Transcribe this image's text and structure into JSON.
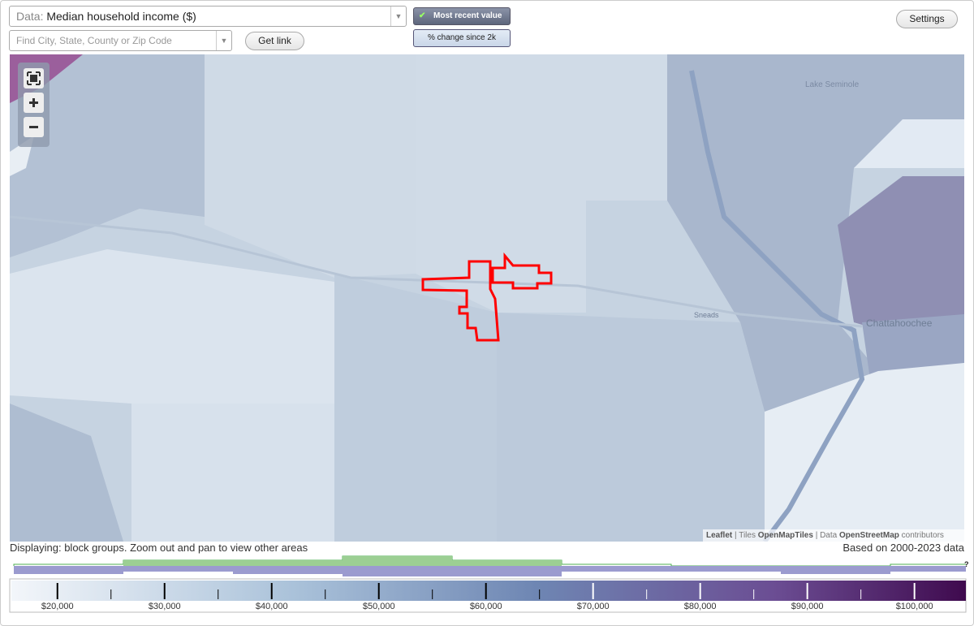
{
  "controls": {
    "data_prefix": "Data:",
    "data_value": "Median household income ($)",
    "search_placeholder": "Find City, State, County or Zip Code",
    "get_link": "Get link",
    "most_recent": "Most recent value",
    "pct_change": "% change since 2k",
    "settings": "Settings"
  },
  "map": {
    "places": [
      "Lake Seminole",
      "Sneads",
      "Chattahoochee"
    ],
    "attribution": {
      "leaflet": "Leaflet",
      "tiles_prefix": "| Tiles",
      "tiles": "OpenMapTiles",
      "data_prefix": "| Data",
      "osm": "OpenStreetMap",
      "suffix": "contributors"
    }
  },
  "status": {
    "displaying": "Displaying: block groups. Zoom out and pan to view other areas",
    "based_on": "Based on 2000-2023 data",
    "help": "?"
  },
  "legend": {
    "range": [
      15700,
      104800
    ],
    "ticks": [
      {
        "value": 20000,
        "label": "$20,000"
      },
      {
        "value": 30000,
        "label": "$30,000"
      },
      {
        "value": 40000,
        "label": "$40,000"
      },
      {
        "value": 50000,
        "label": "$50,000"
      },
      {
        "value": 60000,
        "label": "$60,000"
      },
      {
        "value": 70000,
        "label": "$70,000"
      },
      {
        "value": 80000,
        "label": "$80,000"
      },
      {
        "value": 90000,
        "label": "$90,000"
      },
      {
        "value": 100000,
        "label": "$100,000"
      }
    ]
  }
}
